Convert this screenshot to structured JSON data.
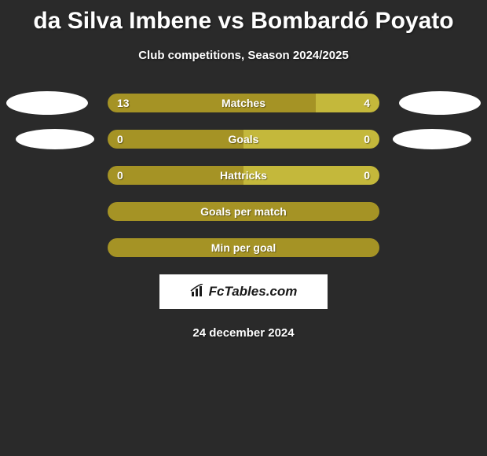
{
  "title": "da Silva Imbene vs Bombardó Poyato",
  "subtitle": "Club competitions, Season 2024/2025",
  "background_color": "#2a2a2a",
  "colors": {
    "player1_bar": "#a59325",
    "player2_bar": "#c4b83b",
    "full_bar": "#a59325",
    "text": "#ffffff",
    "avatar": "#ffffff"
  },
  "stats": [
    {
      "label": "Matches",
      "left_value": "13",
      "right_value": "4",
      "left_pct": 76.5,
      "right_pct": 23.5,
      "show_avatars": true,
      "type": "split"
    },
    {
      "label": "Goals",
      "left_value": "0",
      "right_value": "0",
      "left_pct": 50,
      "right_pct": 50,
      "show_avatars": true,
      "avatar_narrow": true,
      "type": "split"
    },
    {
      "label": "Hattricks",
      "left_value": "0",
      "right_value": "0",
      "left_pct": 50,
      "right_pct": 50,
      "show_avatars": false,
      "type": "split"
    },
    {
      "label": "Goals per match",
      "type": "full"
    },
    {
      "label": "Min per goal",
      "type": "full"
    }
  ],
  "logo_text": "FcTables.com",
  "date": "24 december 2024"
}
